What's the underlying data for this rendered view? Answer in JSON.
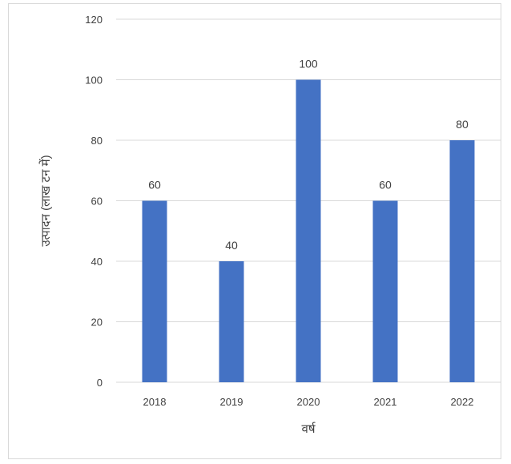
{
  "chart_data": {
    "type": "bar",
    "categories": [
      "2018",
      "2019",
      "2020",
      "2021",
      "2022"
    ],
    "values": [
      60,
      40,
      100,
      60,
      80
    ],
    "data_labels": [
      "60",
      "40",
      "100",
      "60",
      "80"
    ],
    "xlabel": "वर्ष",
    "ylabel": "उत्पादन (लाख टन में)",
    "ylim": [
      0,
      120
    ],
    "yticks": [
      "0",
      "20",
      "40",
      "60",
      "80",
      "100",
      "120"
    ],
    "grid": true,
    "legend": "none",
    "bar_color": "#4472C4",
    "grid_color": "#d9d9d9"
  }
}
